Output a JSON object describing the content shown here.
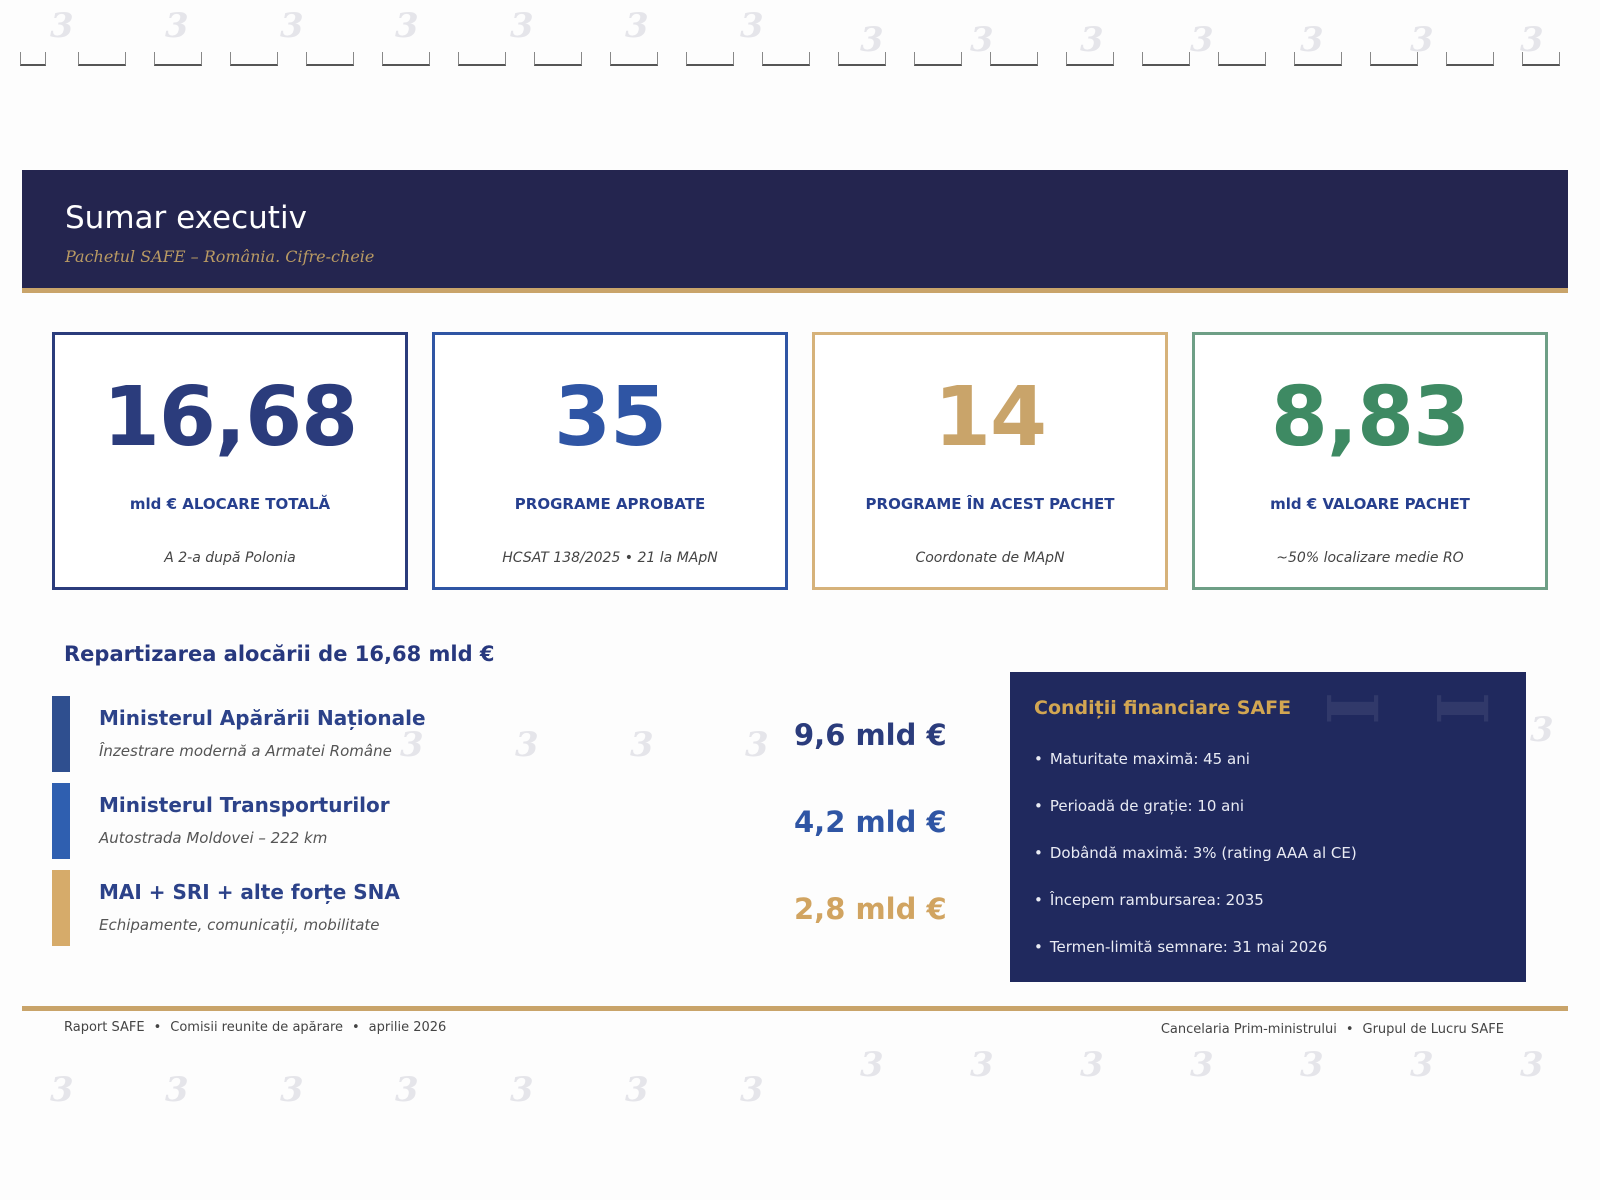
{
  "header": {
    "title": "Sumar executiv",
    "subtitle": "Pachetul SAFE – România. Cifre-cheie"
  },
  "kpis": [
    {
      "value": "16,68",
      "label": "mld € ALOCARE TOTALĂ",
      "note": "A 2-a după Polonia",
      "color": "#2b3c7c"
    },
    {
      "value": "35",
      "label": "PROGRAME APROBATE",
      "note": "HCSAT 138/2025 • 21 la MApN",
      "color": "#2f55a4"
    },
    {
      "value": "14",
      "label": "PROGRAME ÎN ACEST PACHET",
      "note": "Coordonate de MApN",
      "color": "#c9a46a"
    },
    {
      "value": "8,83",
      "label": "mld € VALOARE PACHET",
      "note": "~50% localizare medie RO",
      "color": "#3e8a63"
    }
  ],
  "allocation": {
    "title": "Repartizarea alocării de 16,68 mld €",
    "rows": [
      {
        "name": "Ministerul Apărării Naționale",
        "desc": "Înzestrare modernă a Armatei Române",
        "amount": "9,6 mld €",
        "value_bn_eur": 9.6,
        "color": "#2f4f8f"
      },
      {
        "name": "Ministerul Transporturilor",
        "desc": "Autostrada Moldovei – 222 km",
        "amount": "4,2 mld €",
        "value_bn_eur": 4.2,
        "color": "#2f5fb0"
      },
      {
        "name": "MAI + SRI + alte forțe SNA",
        "desc": "Echipamente, comunicații, mobilitate",
        "amount": "2,8 mld €",
        "value_bn_eur": 2.8,
        "color": "#d6ab6a"
      }
    ]
  },
  "finance": {
    "title": "Condiții financiare SAFE",
    "items": [
      "Maturitate maximă: 45 ani",
      "Perioadă de grație: 10 ani",
      "Dobândă maximă: 3% (rating AAA al CE)",
      "Începem rambursarea: 2035",
      "Termen-limită semnare: 31 mai 2026"
    ]
  },
  "footer": {
    "left": [
      "Raport SAFE",
      "Comisii reunite de apărare",
      "aprilie 2026"
    ],
    "right": [
      "Cancelaria Prim-ministrului",
      "Grupul de Lucru SAFE"
    ]
  },
  "colors": {
    "banner": "#24254f",
    "gold": "#c9a46a",
    "panel": "#20295e",
    "heading": "#27387e"
  }
}
